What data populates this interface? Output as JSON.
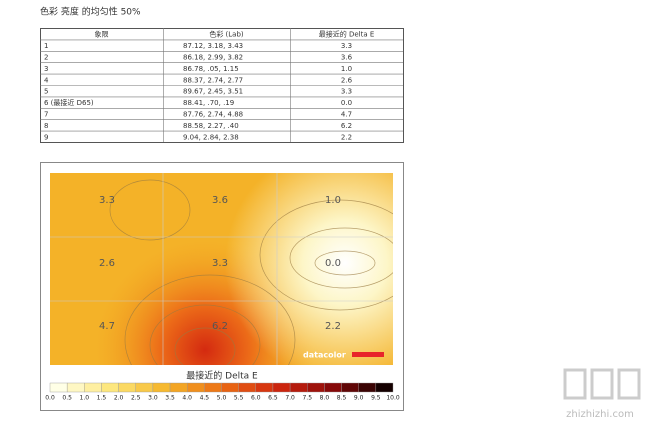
{
  "header": {
    "title": "色彩 亮度 的均匀性 50%"
  },
  "table": {
    "columns": [
      "象限",
      "色彩 (Lab)",
      "最接近的 Delta E"
    ],
    "rows": [
      [
        "1",
        "87.12, 3.18, 3.43",
        "3.3"
      ],
      [
        "2",
        "86.18, 2.99, 3.82",
        "3.6"
      ],
      [
        "3",
        "86.78, .05, 1.15",
        "1.0"
      ],
      [
        "4",
        "88.37, 2.74, 2.77",
        "2.6"
      ],
      [
        "5",
        "89.67, 2.45, 3.51",
        "3.3"
      ],
      [
        "6 (最接近 D65)",
        "88.41, .70, .19",
        "0.0"
      ],
      [
        "7",
        "87.76, 2.74, 4.88",
        "4.7"
      ],
      [
        "8",
        "88.58, 2.27, .40",
        "6.2"
      ],
      [
        "9",
        "9.04, 2.84, 2.38",
        "2.2"
      ]
    ]
  },
  "heatmap": {
    "cells": [
      "3.3",
      "3.6",
      "1.0",
      "2.6",
      "3.3",
      "0.0",
      "4.7",
      "6.2",
      "2.2"
    ],
    "brand": "datacolor",
    "legend_title": "最接近的 Delta E",
    "scale": [
      "0.0",
      "0.5",
      "1.0",
      "1.5",
      "2.0",
      "2.5",
      "3.0",
      "3.5",
      "4.0",
      "4.5",
      "5.0",
      "5.5",
      "6.0",
      "6.5",
      "7.0",
      "7.5",
      "8.0",
      "8.5",
      "9.0",
      "9.5",
      "10.0"
    ]
  },
  "watermark": {
    "site": "zhizhizhi.com"
  }
}
